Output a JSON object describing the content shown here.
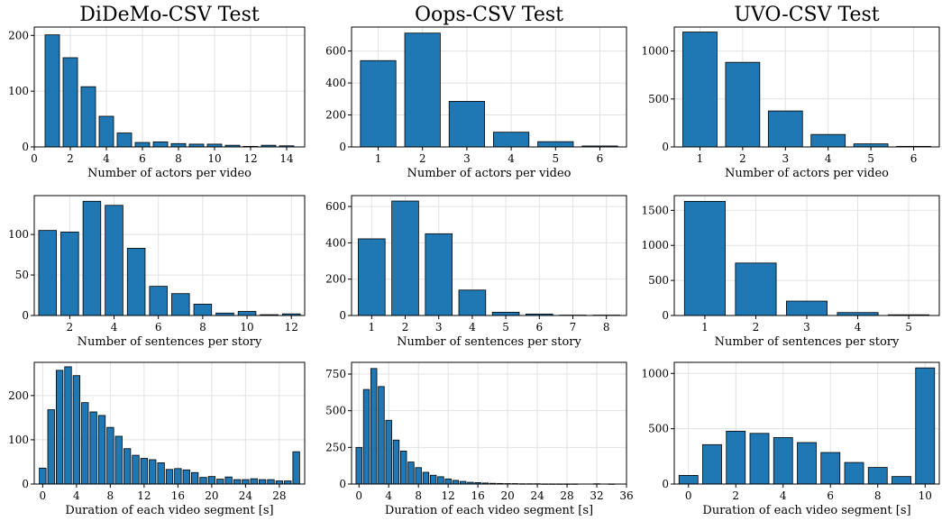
{
  "figure": {
    "color": "#1f77b4",
    "edge_color": "#000000",
    "grid": true
  },
  "chart_data": [
    {
      "type": "bar",
      "title": "DiDeMo-CSV Test",
      "xlabel": "Number of actors per video",
      "ylabel": "",
      "x": [
        1,
        2,
        3,
        4,
        5,
        6,
        7,
        8,
        9,
        10,
        11,
        12,
        13,
        14
      ],
      "values": [
        201,
        160,
        108,
        55,
        25,
        8,
        9,
        6,
        5,
        5,
        3,
        1,
        3,
        2
      ],
      "xlim": [
        0,
        15
      ],
      "ylim": [
        0,
        215
      ],
      "xticks": [
        0,
        2,
        4,
        6,
        8,
        10,
        12,
        14
      ],
      "yticks": [
        0,
        100,
        200
      ]
    },
    {
      "type": "bar",
      "title": "Oops-CSV Test",
      "xlabel": "Number of actors per video",
      "ylabel": "",
      "x": [
        1,
        2,
        3,
        4,
        5,
        6
      ],
      "values": [
        540,
        712,
        285,
        92,
        33,
        6
      ],
      "xlim": [
        0.4,
        6.6
      ],
      "ylim": [
        0,
        750
      ],
      "xticks": [
        1,
        2,
        3,
        4,
        5,
        6
      ],
      "yticks": [
        0,
        200,
        400,
        600
      ]
    },
    {
      "type": "bar",
      "title": "UVO-CSV Test",
      "xlabel": "Number of actors per video",
      "ylabel": "",
      "x": [
        1,
        2,
        3,
        4,
        5,
        6
      ],
      "values": [
        1198,
        882,
        375,
        130,
        32,
        6
      ],
      "xlim": [
        0.4,
        6.6
      ],
      "ylim": [
        0,
        1250
      ],
      "xticks": [
        1,
        2,
        3,
        4,
        5,
        6
      ],
      "yticks": [
        0,
        500,
        1000
      ]
    },
    {
      "type": "bar",
      "title": "",
      "xlabel": "Number of sentences per story",
      "ylabel": "",
      "x": [
        1,
        2,
        3,
        4,
        5,
        6,
        7,
        8,
        9,
        10,
        11,
        12
      ],
      "values": [
        105,
        103,
        141,
        136,
        83,
        36,
        27,
        14,
        3,
        5,
        1,
        2
      ],
      "xlim": [
        0.4,
        12.6
      ],
      "ylim": [
        0,
        148
      ],
      "xticks": [
        2,
        4,
        6,
        8,
        10,
        12
      ],
      "yticks": [
        0,
        50,
        100
      ]
    },
    {
      "type": "bar",
      "title": "",
      "xlabel": "Number of sentences per story",
      "ylabel": "",
      "x": [
        1,
        2,
        3,
        4,
        5,
        6,
        7,
        8
      ],
      "values": [
        422,
        630,
        450,
        140,
        18,
        8,
        2,
        2
      ],
      "xlim": [
        0.4,
        8.6
      ],
      "ylim": [
        0,
        660
      ],
      "xticks": [
        1,
        2,
        3,
        4,
        5,
        6,
        7,
        8
      ],
      "yticks": [
        0,
        200,
        400,
        600
      ]
    },
    {
      "type": "bar",
      "title": "",
      "xlabel": "Number of sentences per story",
      "ylabel": "",
      "x": [
        1,
        2,
        3,
        4,
        5
      ],
      "values": [
        1628,
        748,
        205,
        42,
        10
      ],
      "xlim": [
        0.4,
        5.6
      ],
      "ylim": [
        0,
        1710
      ],
      "xticks": [
        1,
        2,
        3,
        4,
        5
      ],
      "yticks": [
        0,
        500,
        1000,
        1500
      ]
    },
    {
      "type": "bar",
      "title": "",
      "xlabel": "Duration of each video segment [s]",
      "ylabel": "",
      "x": [
        0,
        1,
        2,
        3,
        4,
        5,
        6,
        7,
        8,
        9,
        10,
        11,
        12,
        13,
        14,
        15,
        16,
        17,
        18,
        19,
        20,
        21,
        22,
        23,
        24,
        25,
        26,
        27,
        28,
        29,
        30
      ],
      "values": [
        36,
        168,
        257,
        265,
        245,
        184,
        163,
        155,
        128,
        108,
        80,
        65,
        58,
        55,
        48,
        33,
        35,
        32,
        26,
        15,
        17,
        11,
        16,
        10,
        10,
        12,
        10,
        10,
        7,
        7,
        73
      ],
      "xlim": [
        -1,
        31
      ],
      "ylim": [
        0,
        275
      ],
      "xticks": [
        0,
        4,
        8,
        12,
        16,
        20,
        24,
        28
      ],
      "yticks": [
        0,
        100,
        200
      ]
    },
    {
      "type": "bar",
      "title": "",
      "xlabel": "Duration of each video segment [s]",
      "ylabel": "",
      "x": [
        0,
        1,
        2,
        3,
        4,
        5,
        6,
        7,
        8,
        9,
        10,
        11,
        12,
        13,
        14,
        15,
        16,
        17,
        18,
        19,
        20,
        21,
        22,
        23,
        24,
        25,
        26,
        27,
        28,
        29,
        30,
        31,
        32,
        33,
        34
      ],
      "values": [
        250,
        645,
        788,
        665,
        435,
        300,
        225,
        150,
        112,
        80,
        60,
        50,
        35,
        25,
        18,
        12,
        10,
        7,
        5,
        4,
        3,
        3,
        2,
        2,
        2,
        1,
        1,
        1,
        1,
        1,
        0,
        0,
        2,
        0,
        1
      ],
      "xlim": [
        -1,
        36
      ],
      "ylim": [
        0,
        830
      ],
      "xticks": [
        0,
        4,
        8,
        12,
        16,
        20,
        24,
        28,
        32,
        36
      ],
      "yticks": [
        0,
        250,
        500,
        750
      ]
    },
    {
      "type": "bar",
      "title": "",
      "xlabel": "Duration of each video segment [s]",
      "ylabel": "",
      "x": [
        0,
        1,
        2,
        3,
        4,
        5,
        6,
        7,
        8,
        9,
        10
      ],
      "values": [
        78,
        356,
        478,
        458,
        420,
        375,
        285,
        195,
        150,
        68,
        1050
      ],
      "xlim": [
        -0.6,
        10.6
      ],
      "ylim": [
        0,
        1100
      ],
      "xticks": [
        0,
        2,
        4,
        6,
        8,
        10
      ],
      "yticks": [
        0,
        500,
        1000
      ]
    }
  ]
}
